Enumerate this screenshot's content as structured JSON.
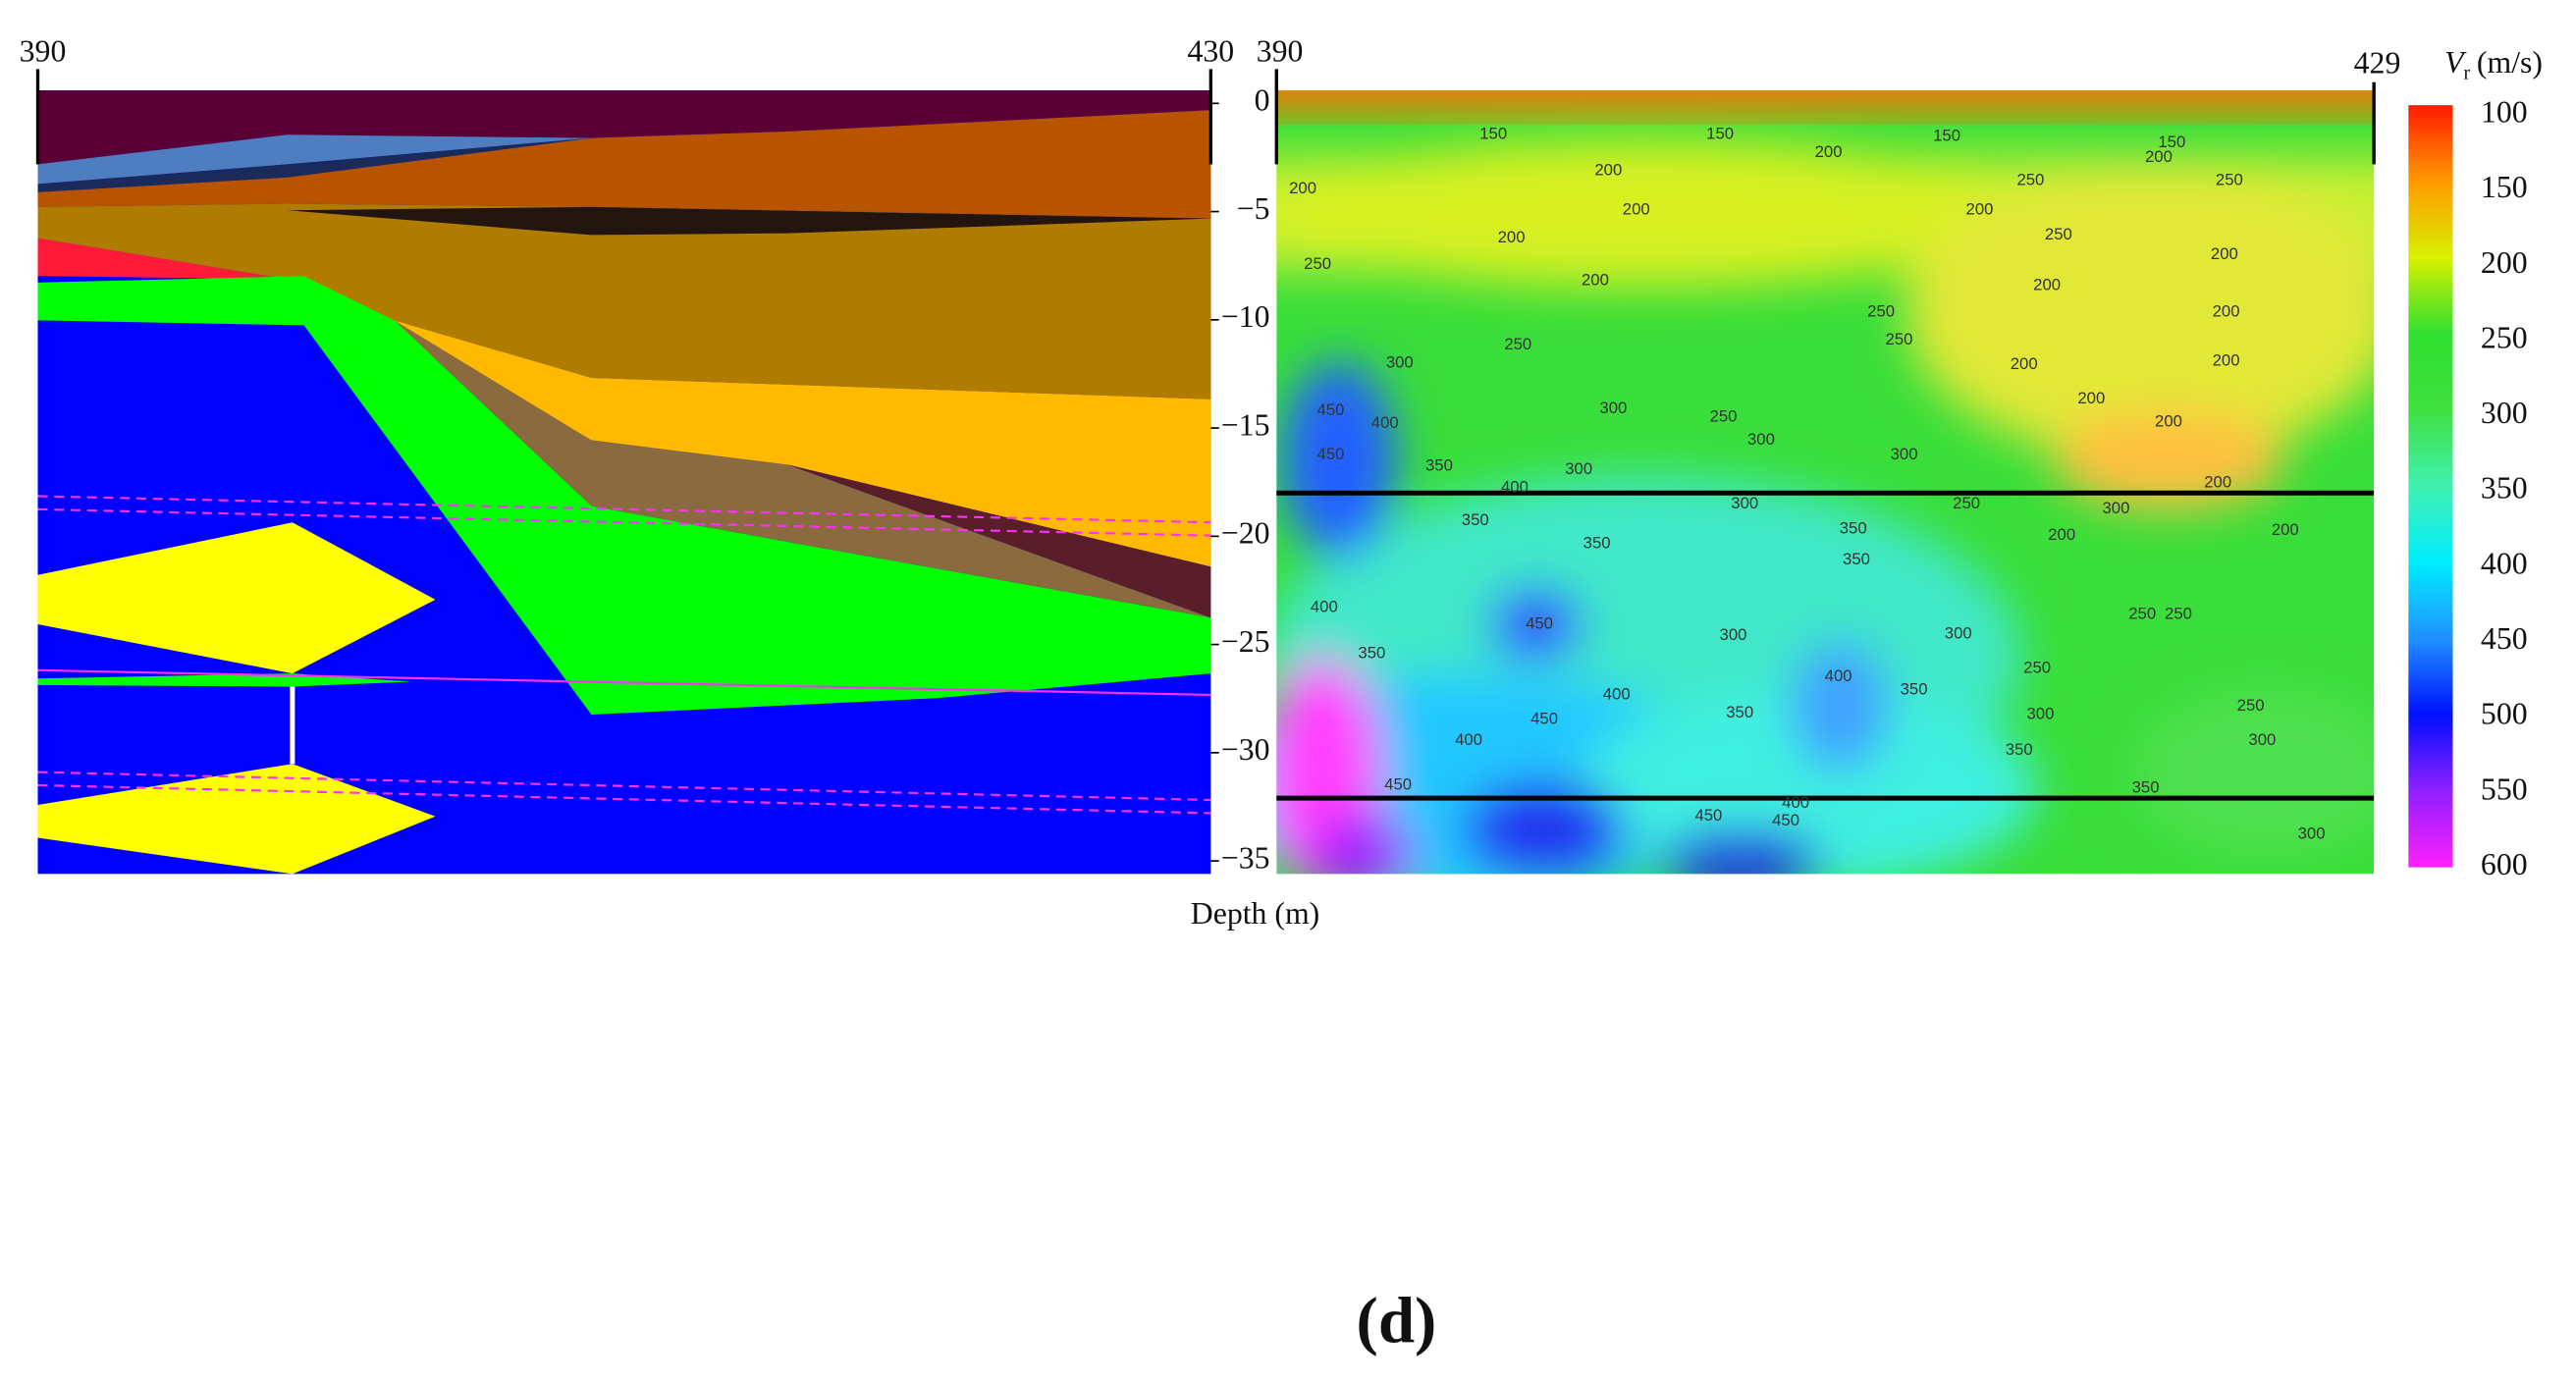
{
  "chart_data": [
    {
      "type": "section",
      "xlim": [
        390,
        430
      ],
      "xticks": [
        390,
        430
      ],
      "ylim": [
        0.6,
        -35.6
      ],
      "yticks": [
        0,
        {
          "value": -5,
          "label": "−5"
        },
        {
          "value": -10,
          "label": "−10"
        },
        {
          "value": -15,
          "label": "−15"
        },
        {
          "value": -20,
          "label": "−20"
        },
        {
          "value": -25,
          "label": "−25"
        },
        {
          "value": -30,
          "label": "−30"
        },
        {
          "value": -35,
          "label": "−35"
        }
      ],
      "ylabel": "Depth (m)"
    },
    {
      "type": "heatmap",
      "xlim": [
        390,
        429
      ],
      "xticks": [
        390,
        429
      ],
      "ylim": [
        0.6,
        -35.6
      ],
      "lines_depth": [
        -18,
        -32.1
      ],
      "colorbar": {
        "symbol": "V",
        "subscript": "r",
        "unit": "(m/s)",
        "clim": [
          100,
          600
        ],
        "ticks": [
          100,
          150,
          200,
          250,
          300,
          350,
          400,
          450,
          500,
          550,
          600
        ],
        "colors": [
          "#ff1a00",
          "#ff9a00",
          "#d8f000",
          "#30e030",
          "#40e040",
          "#40f0b0",
          "#00eeff",
          "#2090ff",
          "#0010ff",
          "#9020ff",
          "#ff20ff"
        ]
      },
      "contour_labels": [
        150,
        150,
        150,
        150,
        200,
        200,
        200,
        200,
        200,
        200,
        200,
        200,
        200,
        200,
        200,
        200,
        200,
        200,
        200,
        200,
        200,
        200,
        250,
        250,
        250,
        250,
        250,
        250,
        250,
        250,
        250,
        250,
        250,
        250,
        250,
        300,
        300,
        300,
        300,
        300,
        300,
        300,
        300,
        300,
        300,
        300,
        300,
        350,
        350,
        350,
        350,
        350,
        350,
        350,
        350,
        350,
        350,
        400,
        400,
        400,
        400,
        400,
        400,
        400,
        450,
        450,
        450,
        450,
        450,
        450,
        450
      ]
    }
  ],
  "caption": "(d)"
}
